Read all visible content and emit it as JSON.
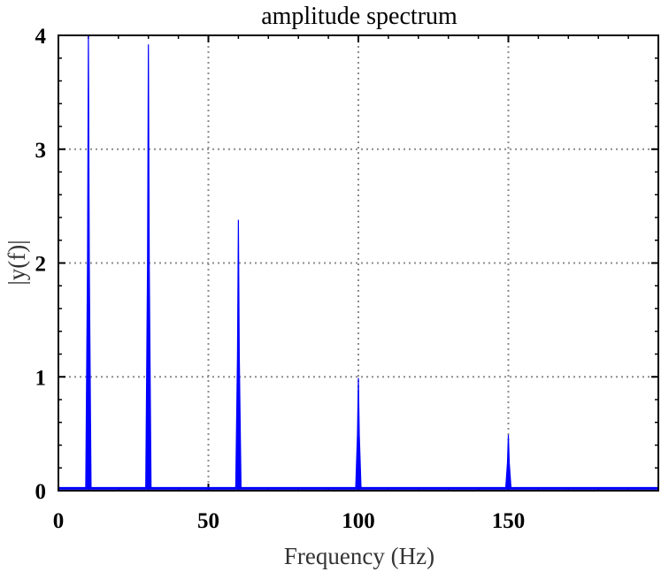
{
  "chart_data": {
    "type": "line",
    "title": "amplitude spectrum",
    "xlabel": "Frequency (Hz)",
    "ylabel": "|y(f)|",
    "xlim": [
      0,
      200
    ],
    "ylim": [
      0,
      4
    ],
    "xticks": [
      0,
      50,
      100,
      150
    ],
    "yticks": [
      0,
      1,
      2,
      3,
      4
    ],
    "x_minor_step": 10,
    "y_minor_step": 0.2,
    "grid": true,
    "legend": "none",
    "series": [
      {
        "color": "#0000ff",
        "baseline": 0.02,
        "peaks": [
          {
            "x": 10,
            "y": 4.0
          },
          {
            "x": 30,
            "y": 3.92
          },
          {
            "x": 60,
            "y": 2.38
          },
          {
            "x": 100,
            "y": 0.99
          },
          {
            "x": 150,
            "y": 0.49
          }
        ]
      }
    ]
  }
}
